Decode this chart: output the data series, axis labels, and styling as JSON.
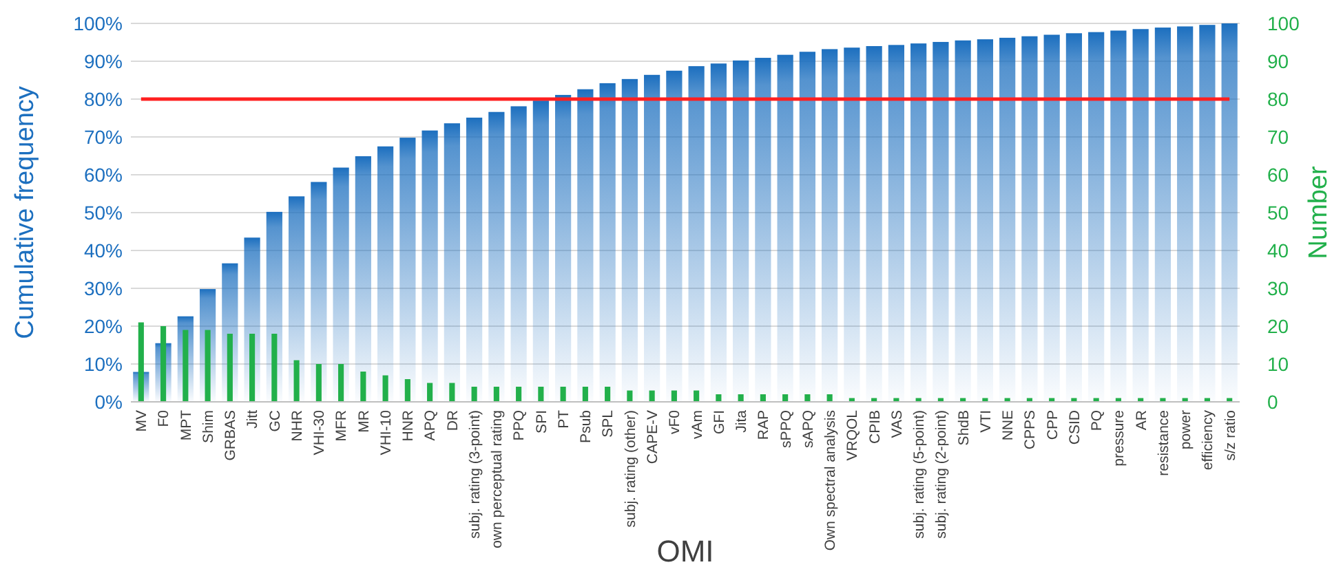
{
  "chart_data": {
    "type": "bar",
    "xlabel": "OMI",
    "ylabel": "Cumulative frequency",
    "y2label": "Number",
    "categories": [
      "MV",
      "F0",
      "MPT",
      "Shim",
      "GRBAS",
      "Jitt",
      "GC",
      "NHR",
      "VHI-30",
      "MFR",
      "MR",
      "VHI-10",
      "HNR",
      "APQ",
      "DR",
      "subj. rating (3-point)",
      "own perceptual rating",
      "PPQ",
      "SPI",
      "PT",
      "Psub",
      "SPL",
      "subj. rating (other)",
      "CAPE-V",
      "vF0",
      "vAm",
      "GFI",
      "Jita",
      "RAP",
      "sPPQ",
      "sAPQ",
      "Own spectral analysis",
      "VRQOL",
      "CPIB",
      "VAS",
      "subj. rating (5-point)",
      "subj. rating (2-point)",
      "ShdB",
      "VTI",
      "NNE",
      "CPPS",
      "CPP",
      "CSID",
      "PQ",
      "pressure",
      "AR",
      "resistance",
      "power",
      "efficiency",
      "s/z ratio"
    ],
    "series": [
      {
        "color": "#1c6fbf",
        "values": [
          7.9,
          15.5,
          22.6,
          29.8,
          36.6,
          43.4,
          50.2,
          54.3,
          58.1,
          61.9,
          64.9,
          67.5,
          69.8,
          71.7,
          73.6,
          75.1,
          76.6,
          78.1,
          79.6,
          81.1,
          82.6,
          84.2,
          85.3,
          86.4,
          87.5,
          88.7,
          89.4,
          90.2,
          90.9,
          91.7,
          92.5,
          93.2,
          93.6,
          94.0,
          94.3,
          94.7,
          95.1,
          95.5,
          95.8,
          96.2,
          96.6,
          97.0,
          97.4,
          97.7,
          98.1,
          98.5,
          98.9,
          99.2,
          99.6,
          100
        ]
      },
      {
        "color": "#22b04b",
        "axis": "y2",
        "values": [
          21,
          20,
          19,
          19,
          18,
          18,
          18,
          11,
          10,
          10,
          8,
          7,
          6,
          5,
          5,
          4,
          4,
          4,
          4,
          4,
          4,
          4,
          3,
          3,
          3,
          3,
          2,
          2,
          2,
          2,
          2,
          2,
          1,
          1,
          1,
          1,
          1,
          1,
          1,
          1,
          1,
          1,
          1,
          1,
          1,
          1,
          1,
          1,
          1,
          1
        ]
      }
    ],
    "ylim": [
      0,
      100
    ],
    "yticks": [
      {
        "value": 0,
        "label": "0%"
      },
      {
        "value": 10,
        "label": "10%"
      },
      {
        "value": 20,
        "label": "20%"
      },
      {
        "value": 30,
        "label": "30%"
      },
      {
        "value": 40,
        "label": "40%"
      },
      {
        "value": 50,
        "label": "50%"
      },
      {
        "value": 60,
        "label": "60%"
      },
      {
        "value": 70,
        "label": "70%"
      },
      {
        "value": 80,
        "label": "80%"
      },
      {
        "value": 90,
        "label": "90%"
      },
      {
        "value": 100,
        "label": "100%"
      }
    ],
    "y2lim": [
      0,
      100
    ],
    "y2ticks": [
      0,
      10,
      20,
      30,
      40,
      50,
      60,
      70,
      80,
      90,
      100
    ],
    "ref_lines": [
      {
        "axis": "y",
        "value": 80,
        "color": "#ff2020"
      }
    ],
    "grid": "y"
  }
}
